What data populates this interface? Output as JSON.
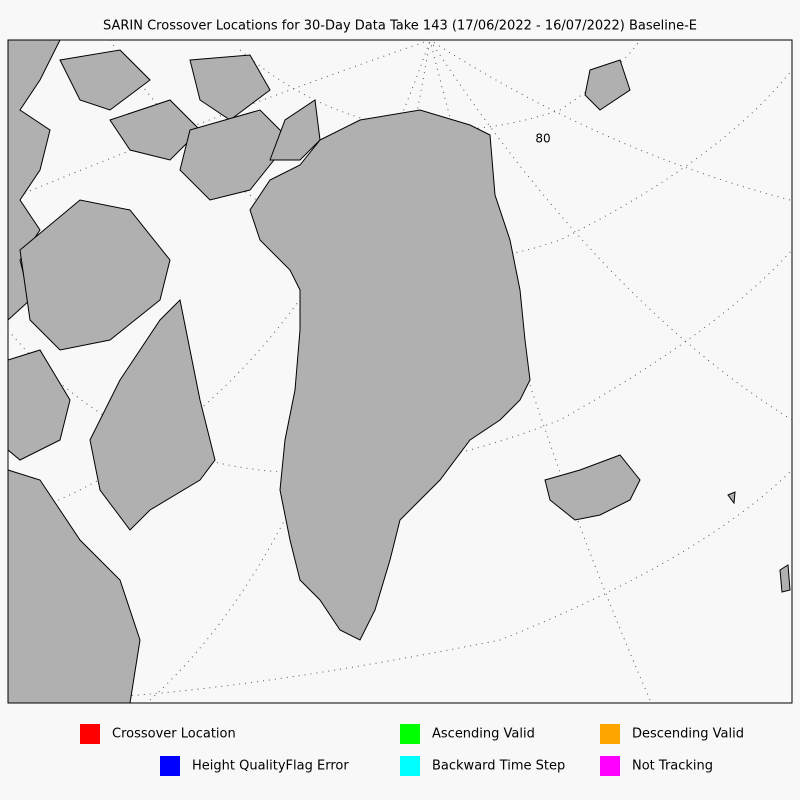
{
  "title": "SARIN Crossover Locations for 30-Day Data Take 143 (17/06/2022 - 16/07/2022) Baseline-E",
  "graticule_label": "80",
  "legend": [
    {
      "label": "Crossover Location",
      "color": "#ff0000"
    },
    {
      "label": "Ascending Valid",
      "color": "#00ff00"
    },
    {
      "label": "Descending Valid",
      "color": "#ffa500"
    },
    {
      "label": "Height QualityFlag Error",
      "color": "#0000ff"
    },
    {
      "label": "Backward Time Step",
      "color": "#00ffff"
    },
    {
      "label": "Not Tracking",
      "color": "#ff00ff"
    }
  ]
}
